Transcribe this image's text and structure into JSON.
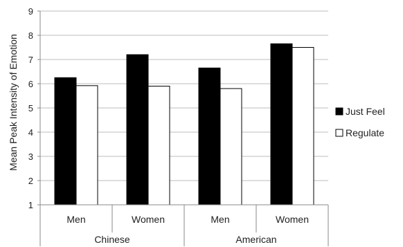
{
  "chart_data": {
    "type": "bar",
    "groups": [
      "Chinese",
      "American"
    ],
    "categories": [
      "Men",
      "Women",
      "Men",
      "Women"
    ],
    "category_group": [
      0,
      0,
      1,
      1
    ],
    "series": [
      {
        "name": "Just Feel",
        "values": [
          6.25,
          7.2,
          6.65,
          7.65
        ],
        "color": "#000000"
      },
      {
        "name": "Regulate",
        "values": [
          5.92,
          5.9,
          5.8,
          7.5
        ],
        "color": "#ffffff"
      }
    ],
    "ylabel": "Mean Peak Intensity of Emotion",
    "xlabel": "",
    "ylim": [
      1,
      9
    ],
    "yticks": [
      1,
      2,
      3,
      4,
      5,
      6,
      7,
      8,
      9
    ],
    "grid": true,
    "legend_position": "right"
  }
}
